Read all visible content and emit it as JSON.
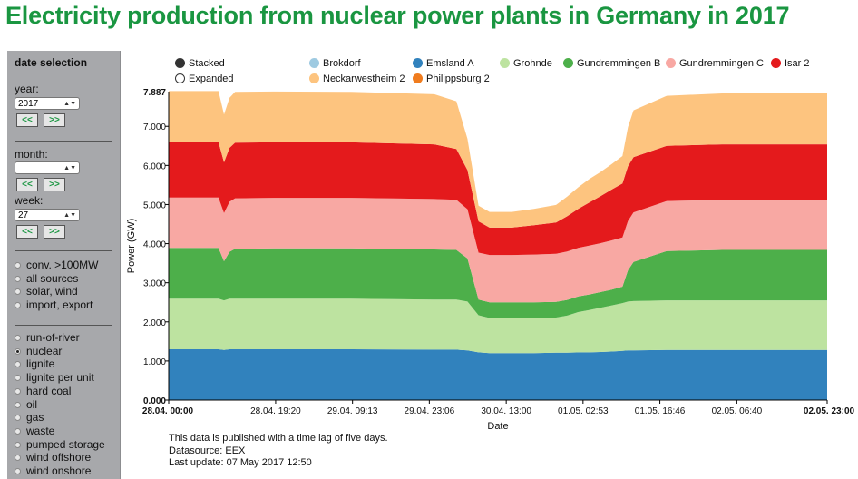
{
  "page": {
    "title": "Electricity production from nuclear power plants in Germany in 2017"
  },
  "sidebar": {
    "heading": "date selection",
    "year_label": "year:",
    "year_value": "2017",
    "month_label": "month:",
    "month_value": "",
    "week_label": "week:",
    "week_value": "27",
    "prev_label": "<<",
    "next_label": ">>",
    "group1": [
      "conv. >100MW",
      "all sources",
      "solar, wind",
      "import, export"
    ],
    "group2": [
      "run-of-river",
      "nuclear",
      "lignite",
      "lignite per unit",
      "hard coal",
      "oil",
      "gas",
      "waste",
      "pumped storage",
      "wind offshore",
      "wind onshore"
    ],
    "selected": "nuclear"
  },
  "legend": {
    "modes": [
      {
        "label": "Stacked",
        "color": "#333333",
        "selected": true
      },
      {
        "label": "Expanded",
        "color": "#ffffff",
        "selected": false
      }
    ]
  },
  "footer": {
    "line1": "This data is published with a time lag of five days.",
    "line2": "Datasource: EEX",
    "line3": "Last update: 07 May 2017 12:50"
  },
  "chart_data": {
    "type": "area",
    "stacked": true,
    "ylabel": "Power (GW)",
    "xlabel": "Date",
    "ylim": [
      0,
      7.887
    ],
    "y_ticks": [
      "0.000",
      "1.000",
      "2.000",
      "3.000",
      "4.000",
      "5.000",
      "6.000",
      "7.000"
    ],
    "y_max_label": "7.887",
    "x_range_hours": [
      0,
      119
    ],
    "x_ticks": [
      {
        "label": "28.04. 00:00",
        "h": 0,
        "bold": true
      },
      {
        "label": "28.04. 19:20",
        "h": 19.33
      },
      {
        "label": "29.04. 09:13",
        "h": 33.22
      },
      {
        "label": "29.04. 23:06",
        "h": 47.1
      },
      {
        "label": "30.04. 13:00",
        "h": 61
      },
      {
        "label": "01.05. 02:53",
        "h": 74.88
      },
      {
        "label": "01.05. 16:46",
        "h": 88.77
      },
      {
        "label": "02.05. 06:40",
        "h": 102.67
      },
      {
        "label": "02.05. 23:00",
        "h": 119,
        "bold": true
      }
    ],
    "x": [
      0,
      9,
      10,
      11,
      12,
      19,
      33,
      48,
      52,
      54,
      56,
      58,
      62,
      66,
      70,
      72,
      74,
      76,
      78,
      80,
      82,
      83,
      84,
      90,
      100,
      110,
      119
    ],
    "series": [
      {
        "name": "Brokdorf",
        "color": "#9ecae1",
        "values": [
          0,
          0,
          0,
          0,
          0,
          0,
          0,
          0,
          0,
          0,
          0,
          0,
          0,
          0,
          0,
          0,
          0,
          0,
          0,
          0,
          0,
          0,
          0,
          0,
          0,
          0,
          0
        ]
      },
      {
        "name": "Emsland A",
        "color": "#3182bd",
        "values": [
          1.3,
          1.3,
          1.28,
          1.3,
          1.3,
          1.3,
          1.3,
          1.29,
          1.29,
          1.27,
          1.22,
          1.2,
          1.2,
          1.2,
          1.21,
          1.21,
          1.22,
          1.22,
          1.23,
          1.24,
          1.26,
          1.27,
          1.27,
          1.28,
          1.28,
          1.28,
          1.28
        ]
      },
      {
        "name": "Grohnde",
        "color": "#bde3a0",
        "values": [
          1.29,
          1.29,
          1.27,
          1.29,
          1.29,
          1.29,
          1.29,
          1.28,
          1.28,
          1.25,
          0.95,
          0.9,
          0.9,
          0.9,
          0.9,
          0.95,
          1.03,
          1.08,
          1.13,
          1.18,
          1.22,
          1.25,
          1.26,
          1.27,
          1.27,
          1.27,
          1.27
        ]
      },
      {
        "name": "Gundremmingen B",
        "color": "#4daf4a",
        "values": [
          1.3,
          1.3,
          1.0,
          1.2,
          1.28,
          1.29,
          1.29,
          1.28,
          1.27,
          1.1,
          0.4,
          0.4,
          0.4,
          0.4,
          0.4,
          0.4,
          0.4,
          0.4,
          0.4,
          0.4,
          0.42,
          0.8,
          1.0,
          1.26,
          1.29,
          1.29,
          1.29
        ]
      },
      {
        "name": "Gundremmingen C",
        "color": "#f8a8a3",
        "values": [
          1.29,
          1.29,
          1.23,
          1.28,
          1.29,
          1.29,
          1.29,
          1.29,
          1.28,
          1.26,
          1.2,
          1.21,
          1.21,
          1.22,
          1.23,
          1.24,
          1.24,
          1.25,
          1.25,
          1.26,
          1.26,
          1.26,
          1.27,
          1.28,
          1.28,
          1.28,
          1.28
        ]
      },
      {
        "name": "Isar 2",
        "color": "#e41a1c",
        "values": [
          1.42,
          1.42,
          1.3,
          1.38,
          1.42,
          1.42,
          1.42,
          1.4,
          1.3,
          1.0,
          0.8,
          0.7,
          0.7,
          0.75,
          0.8,
          0.9,
          1.0,
          1.1,
          1.2,
          1.3,
          1.38,
          1.4,
          1.41,
          1.41,
          1.42,
          1.42,
          1.42
        ]
      },
      {
        "name": "Neckarwestheim 2",
        "color": "#fdc47f",
        "values": [
          1.3,
          1.3,
          1.22,
          1.28,
          1.3,
          1.3,
          1.29,
          1.28,
          1.22,
          0.8,
          0.4,
          0.4,
          0.4,
          0.42,
          0.45,
          0.5,
          0.55,
          0.6,
          0.62,
          0.65,
          0.7,
          1.0,
          1.2,
          1.28,
          1.3,
          1.3,
          1.3
        ]
      },
      {
        "name": "Philippsburg 2",
        "color": "#f07c1e",
        "values": [
          0,
          0,
          0,
          0,
          0,
          0,
          0,
          0,
          0,
          0,
          0,
          0,
          0,
          0,
          0,
          0,
          0,
          0,
          0,
          0,
          0,
          0,
          0,
          0,
          0,
          0,
          0
        ]
      }
    ]
  }
}
